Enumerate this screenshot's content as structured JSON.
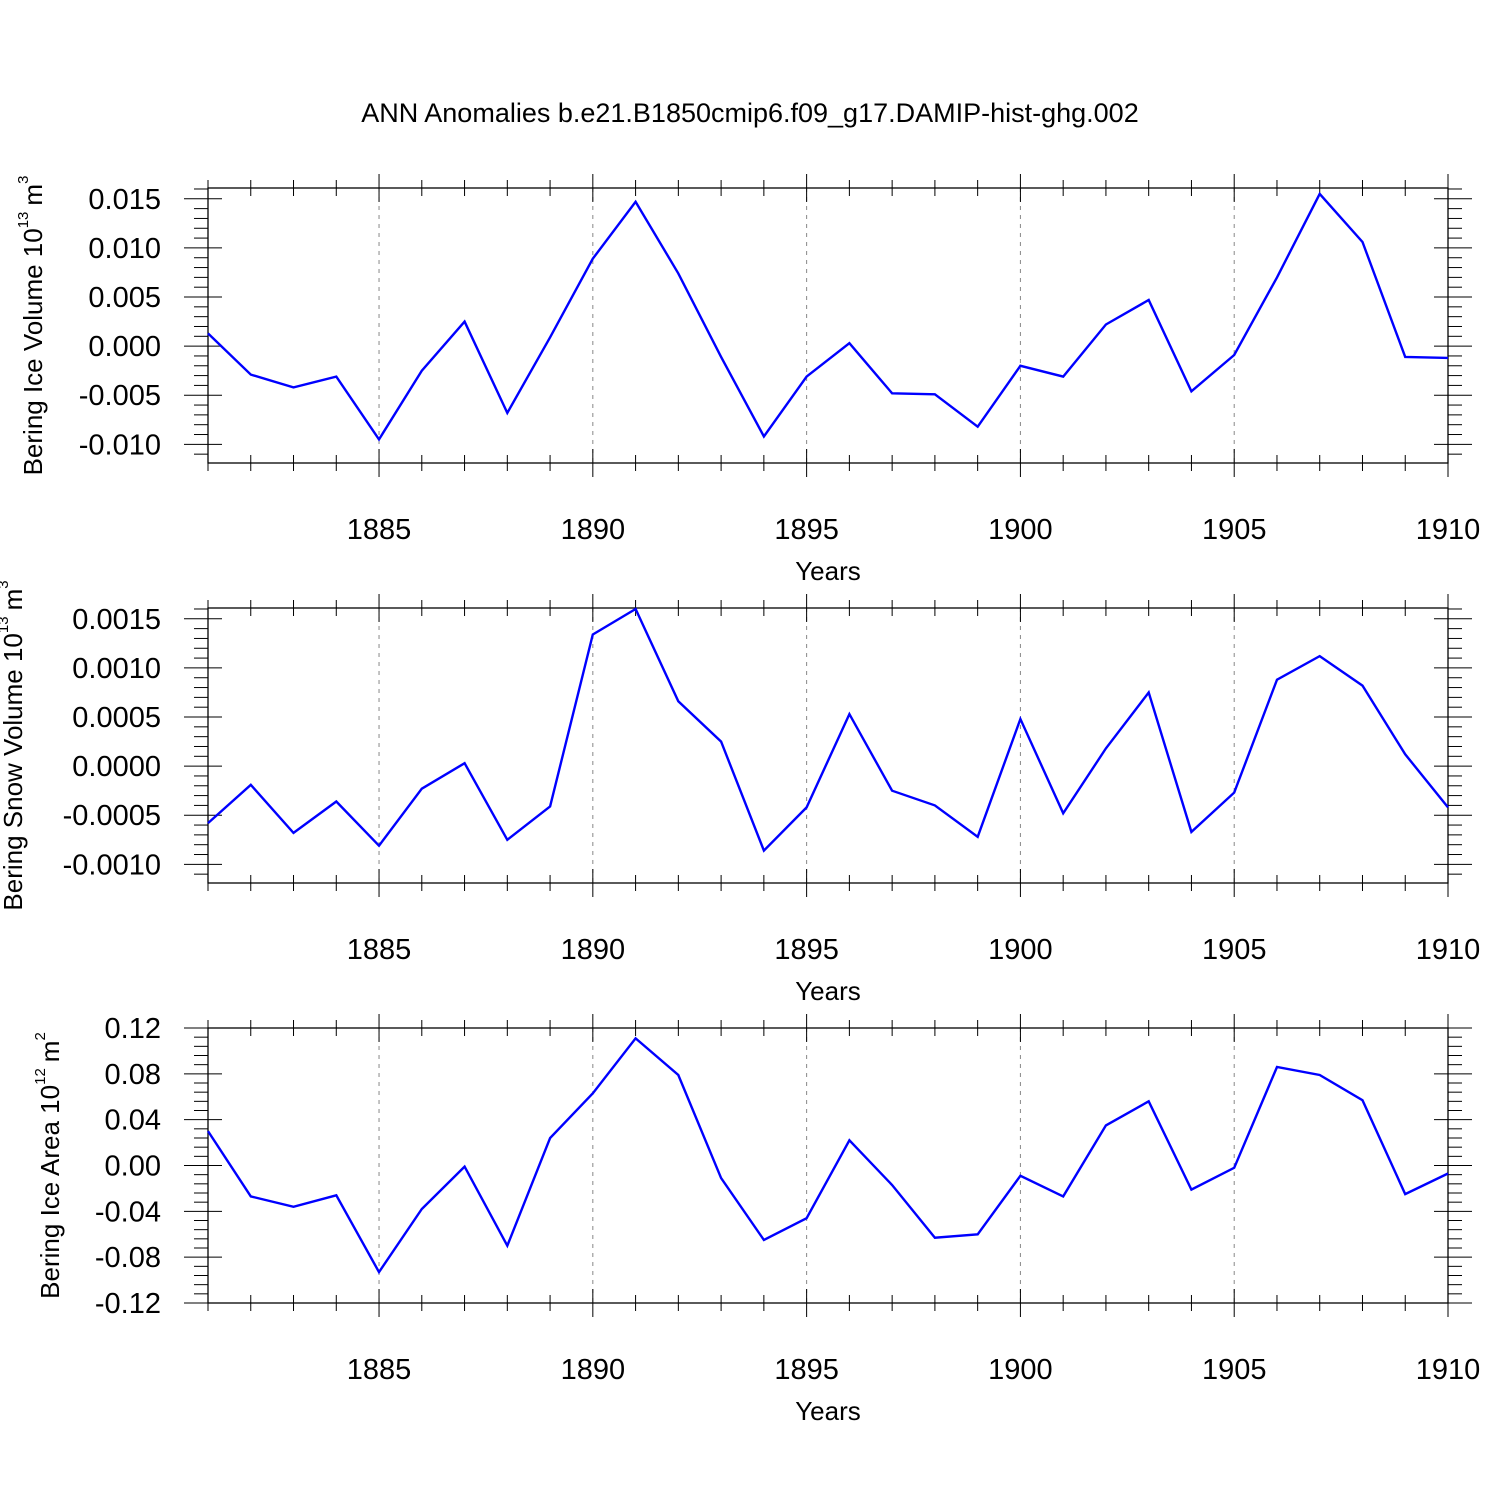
{
  "title": "ANN Anomalies b.e21.B1850cmip6.f09_g17.DAMIP-hist-ghg.002",
  "chart_data": [
    {
      "type": "line",
      "ylabel_main": "Bering Ice Volume 10",
      "ylabel_exp": "13",
      "ylabel_unit": "m",
      "ylabel_unit_exp": "3",
      "xlabel": "Years",
      "xlim": [
        1881,
        1910
      ],
      "ylim": [
        -0.0119,
        0.0161
      ],
      "xticks": [
        1885,
        1890,
        1895,
        1900,
        1905,
        1910
      ],
      "yticks": [
        -0.01,
        -0.005,
        0.0,
        0.005,
        0.01,
        0.015
      ],
      "ytick_labels": [
        "-0.010",
        "-0.005",
        "0.000",
        "0.005",
        "0.010",
        "0.015"
      ],
      "y_minor_step": 0.001,
      "grid": "dashed-vertical-at-major-x",
      "color": "#0000ff",
      "x": [
        1881,
        1882,
        1883,
        1884,
        1885,
        1886,
        1887,
        1888,
        1889,
        1890,
        1891,
        1892,
        1893,
        1894,
        1895,
        1896,
        1897,
        1898,
        1899,
        1900,
        1901,
        1902,
        1903,
        1904,
        1905,
        1906,
        1907,
        1908,
        1909,
        1910
      ],
      "values": [
        0.0013,
        -0.0029,
        -0.0042,
        -0.0031,
        -0.0095,
        -0.0025,
        0.0025,
        -0.0068,
        0.0009,
        0.0089,
        0.0147,
        0.0074,
        -0.0011,
        -0.0092,
        -0.0031,
        0.0003,
        -0.0048,
        -0.0049,
        -0.0082,
        -0.002,
        -0.0031,
        0.0022,
        0.0047,
        -0.0046,
        -0.0009,
        0.007,
        0.0155,
        0.0106,
        -0.0011,
        -0.0012
      ]
    },
    {
      "type": "line",
      "ylabel_main": "Bering Snow Volume 10",
      "ylabel_exp": "13",
      "ylabel_unit": "m",
      "ylabel_unit_exp": "3",
      "xlabel": "Years",
      "xlim": [
        1881,
        1910
      ],
      "ylim": [
        -0.00119,
        0.00161
      ],
      "xticks": [
        1885,
        1890,
        1895,
        1900,
        1905,
        1910
      ],
      "yticks": [
        -0.001,
        -0.0005,
        0.0,
        0.0005,
        0.001,
        0.0015
      ],
      "ytick_labels": [
        "-0.0010",
        "-0.0005",
        "0.0000",
        "0.0005",
        "0.0010",
        "0.0015"
      ],
      "y_minor_step": 0.0001,
      "grid": "dashed-vertical-at-major-x",
      "color": "#0000ff",
      "x": [
        1881,
        1882,
        1883,
        1884,
        1885,
        1886,
        1887,
        1888,
        1889,
        1890,
        1891,
        1892,
        1893,
        1894,
        1895,
        1896,
        1897,
        1898,
        1899,
        1900,
        1901,
        1902,
        1903,
        1904,
        1905,
        1906,
        1907,
        1908,
        1909,
        1910
      ],
      "values": [
        -0.00058,
        -0.00019,
        -0.00068,
        -0.00036,
        -0.00081,
        -0.00023,
        3e-05,
        -0.00075,
        -0.00041,
        0.00134,
        0.0016,
        0.00066,
        0.00025,
        -0.00086,
        -0.00042,
        0.00053,
        -0.00025,
        -0.0004,
        -0.00072,
        0.00048,
        -0.00048,
        0.00018,
        0.00075,
        -0.00067,
        -0.00027,
        0.00088,
        0.00112,
        0.00082,
        0.00012,
        -0.00042
      ]
    },
    {
      "type": "line",
      "ylabel_main": "Bering Ice Area 10",
      "ylabel_exp": "12",
      "ylabel_unit": "m",
      "ylabel_unit_exp": "2",
      "xlabel": "Years",
      "xlim": [
        1881,
        1910
      ],
      "ylim": [
        -0.12,
        0.12
      ],
      "xticks": [
        1885,
        1890,
        1895,
        1900,
        1905,
        1910
      ],
      "yticks": [
        -0.12,
        -0.08,
        -0.04,
        0.0,
        0.04,
        0.08,
        0.12
      ],
      "ytick_labels": [
        "-0.12",
        "-0.08",
        "-0.04",
        "0.00",
        "0.04",
        "0.08",
        "0.12"
      ],
      "y_minor_step": 0.008,
      "grid": "dashed-vertical-at-major-x",
      "color": "#0000ff",
      "x": [
        1881,
        1882,
        1883,
        1884,
        1885,
        1886,
        1887,
        1888,
        1889,
        1890,
        1891,
        1892,
        1893,
        1894,
        1895,
        1896,
        1897,
        1898,
        1899,
        1900,
        1901,
        1902,
        1903,
        1904,
        1905,
        1906,
        1907,
        1908,
        1909,
        1910
      ],
      "values": [
        0.03,
        -0.027,
        -0.036,
        -0.026,
        -0.093,
        -0.038,
        -0.001,
        -0.07,
        0.024,
        0.063,
        0.111,
        0.079,
        -0.011,
        -0.065,
        -0.046,
        0.022,
        -0.017,
        -0.063,
        -0.06,
        -0.009,
        -0.027,
        0.035,
        0.056,
        -0.021,
        -0.002,
        0.086,
        0.079,
        0.057,
        -0.025,
        -0.007
      ]
    }
  ]
}
